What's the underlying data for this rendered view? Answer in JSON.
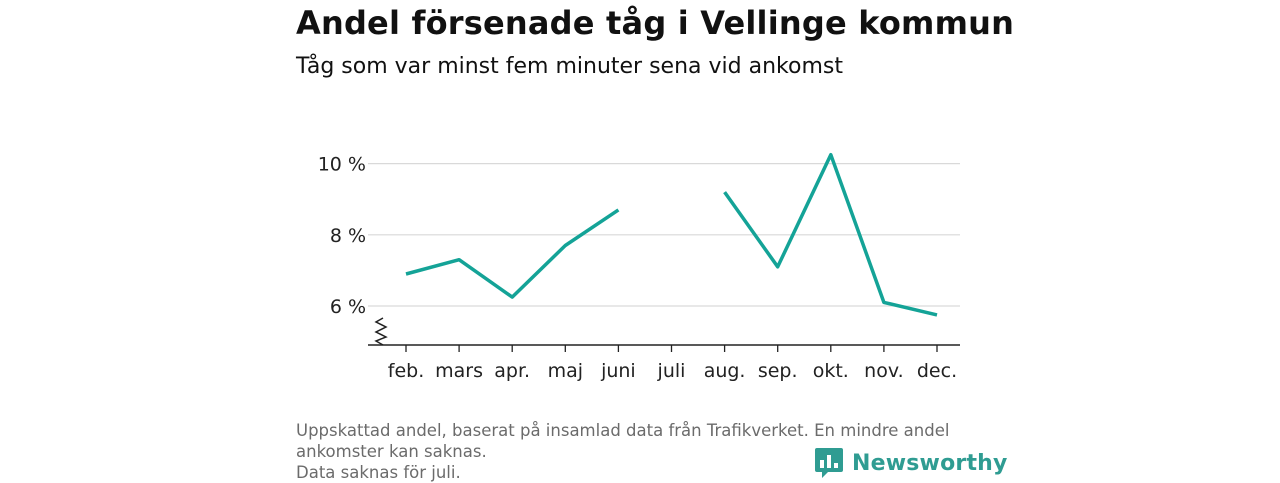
{
  "title": "Andel försenade tåg i Vellinge kommun",
  "subtitle": "Tåg som var minst fem minuter sena vid ankomst",
  "footnote": {
    "line1": "Uppskattad andel, baserat på insamlad data från Trafikverket. En mindre andel",
    "line2": "ankomster kan saknas.",
    "line3": "Data saknas för juli."
  },
  "brand": {
    "name": "Newsworthy",
    "icon": "newsworthy-logo-icon",
    "color": "#2f9c92"
  },
  "chart_data": {
    "type": "line",
    "categories": [
      "feb.",
      "mars",
      "apr.",
      "maj",
      "juni",
      "juli",
      "aug.",
      "sep.",
      "okt.",
      "nov.",
      "dec."
    ],
    "series": [
      {
        "color": "#14a397",
        "values": [
          6.9,
          7.3,
          6.25,
          7.7,
          8.7,
          null,
          9.2,
          7.1,
          10.25,
          6.1,
          5.75
        ]
      }
    ],
    "y_ticks": [
      6,
      8,
      10
    ],
    "y_tick_labels": [
      "6 %",
      "8 %",
      "10 %"
    ],
    "ylim": [
      5,
      10.6
    ],
    "y_axis_broken": true,
    "grid": true,
    "xlabel": "",
    "ylabel": ""
  }
}
